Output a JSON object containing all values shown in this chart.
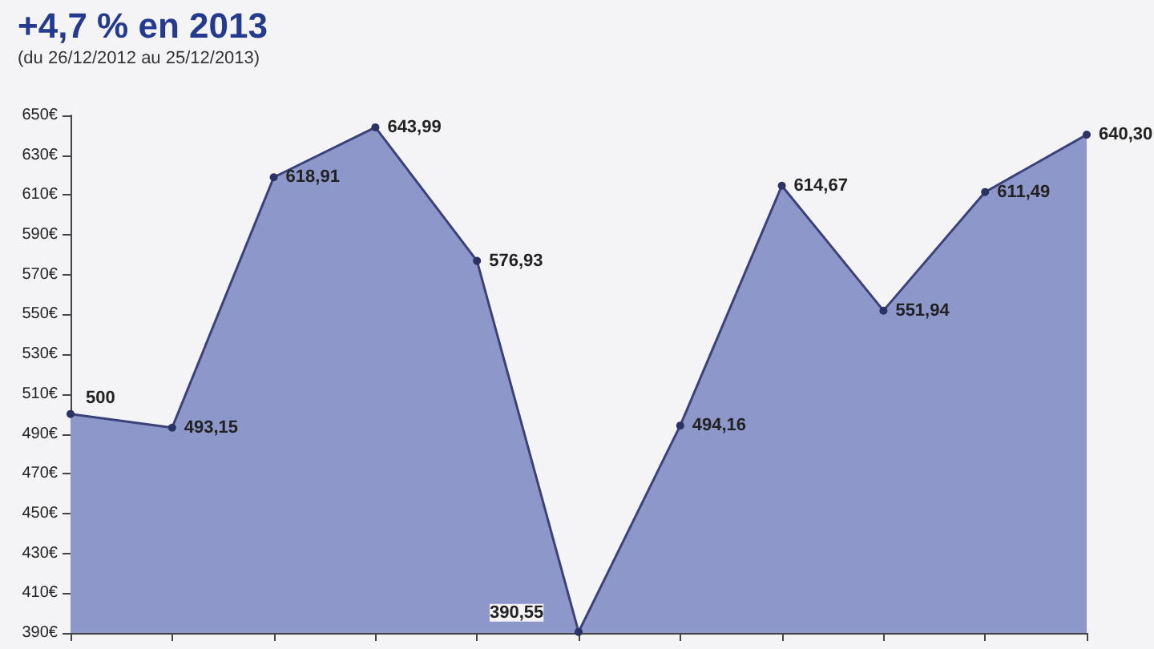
{
  "chart_data": {
    "type": "area",
    "title": "+4,7 % en 2013",
    "subtitle": "(du 26/12/2012 au 25/12/2013)",
    "categories": [
      null,
      null,
      null,
      null,
      null,
      null,
      null,
      null,
      null,
      null,
      null
    ],
    "series": [
      {
        "color": "#8e97c9",
        "values": [
          500,
          493.15,
          618.91,
          643.99,
          576.93,
          390.55,
          494.16,
          614.67,
          551.94,
          611.49,
          640.3
        ],
        "value_labels": [
          "500",
          "493,15",
          "618,91",
          "643,99",
          "576,93",
          "390,55",
          "494,16",
          "614,67",
          "551,94",
          "611,49",
          "640,30"
        ]
      }
    ],
    "ylim": [
      390,
      650
    ],
    "yticks": [
      {
        "value": 390,
        "label": "390€"
      },
      {
        "value": 410,
        "label": "410€"
      },
      {
        "value": 430,
        "label": "430€"
      },
      {
        "value": 450,
        "label": "450€"
      },
      {
        "value": 470,
        "label": "470€"
      },
      {
        "value": 490,
        "label": "490€"
      },
      {
        "value": 510,
        "label": "510€"
      },
      {
        "value": 530,
        "label": "530€"
      },
      {
        "value": 550,
        "label": "550€"
      },
      {
        "value": 570,
        "label": "570€"
      },
      {
        "value": 590,
        "label": "590€"
      },
      {
        "value": 610,
        "label": "610€"
      },
      {
        "value": 630,
        "label": "630€"
      },
      {
        "value": 650,
        "label": "650€"
      }
    ],
    "marker": "circle",
    "grid": false
  }
}
